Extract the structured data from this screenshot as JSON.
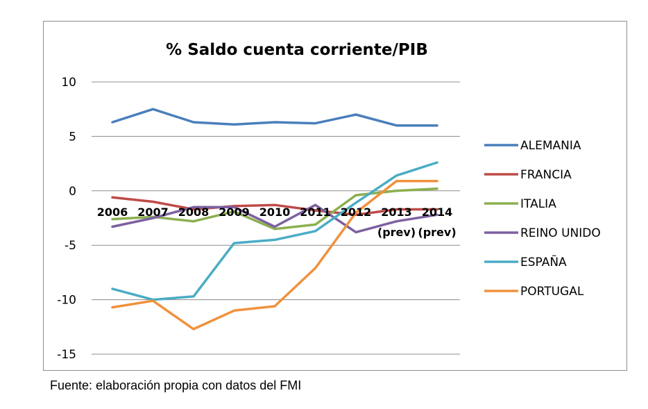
{
  "source_note": "Fuente: elaboración propia con datos del FMI",
  "chart_data": {
    "type": "line",
    "title": "% Saldo cuenta corriente/PIB",
    "xlabel": "",
    "ylabel": "",
    "ylim": [
      -15,
      10
    ],
    "yticks": [
      10,
      5,
      0,
      -5,
      -10,
      -15
    ],
    "grid": true,
    "legend": "right",
    "categories": [
      {
        "year": "2006",
        "sub": ""
      },
      {
        "year": "2007",
        "sub": ""
      },
      {
        "year": "2008",
        "sub": ""
      },
      {
        "year": "2009",
        "sub": ""
      },
      {
        "year": "2010",
        "sub": ""
      },
      {
        "year": "2011",
        "sub": ""
      },
      {
        "year": "2012",
        "sub": ""
      },
      {
        "year": "2013",
        "sub": "(prev)"
      },
      {
        "year": "2014",
        "sub": "(prev)"
      }
    ],
    "series": [
      {
        "name": "ALEMANIA",
        "color": "#4a7ebb",
        "values": [
          6.3,
          7.5,
          6.3,
          6.1,
          6.3,
          6.2,
          7.0,
          6.0,
          6.0
        ]
      },
      {
        "name": "FRANCIA",
        "color": "#be4b48",
        "values": [
          -0.6,
          -1.0,
          -1.7,
          -1.4,
          -1.3,
          -1.8,
          -2.2,
          -1.7,
          -1.7
        ]
      },
      {
        "name": "ITALIA",
        "color": "#8caf4f",
        "values": [
          -2.6,
          -2.4,
          -2.8,
          -1.9,
          -3.5,
          -3.1,
          -0.4,
          0.0,
          0.2
        ]
      },
      {
        "name": "REINO UNIDO",
        "color": "#7d60a0",
        "values": [
          -3.3,
          -2.5,
          -1.5,
          -1.5,
          -3.3,
          -1.3,
          -3.8,
          -2.8,
          -2.2
        ]
      },
      {
        "name": "ESPAÑA",
        "color": "#4aacc5",
        "values": [
          -9.0,
          -10.0,
          -9.7,
          -4.8,
          -4.5,
          -3.7,
          -1.1,
          1.4,
          2.6
        ]
      },
      {
        "name": "PORTUGAL",
        "color": "#f0913c",
        "values": [
          -10.7,
          -10.1,
          -12.7,
          -11.0,
          -10.6,
          -7.1,
          -2.0,
          0.9,
          0.9
        ]
      }
    ]
  }
}
